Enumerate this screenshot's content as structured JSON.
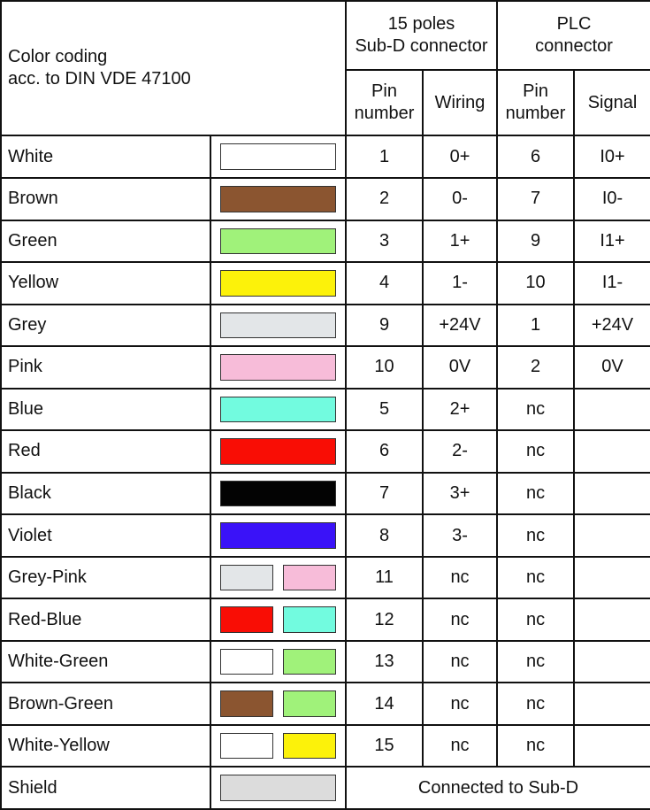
{
  "header": {
    "color_coding": "Color coding",
    "standard": "acc. to DIN VDE 47100",
    "subd_group_line1": "15 poles",
    "subd_group_line2": "Sub-D connector",
    "plc_group_line1": "PLC",
    "plc_group_line2": "connector",
    "pin_number_line1": "Pin",
    "pin_number_line2": "number",
    "wiring": "Wiring",
    "signal": "Signal"
  },
  "rows": [
    {
      "name": "White",
      "colors": [
        "#ffffff"
      ],
      "subd_pin": "1",
      "wiring": "0+",
      "plc_pin": "6",
      "signal": "I0+"
    },
    {
      "name": "Brown",
      "colors": [
        "#8b5530"
      ],
      "subd_pin": "2",
      "wiring": "0-",
      "plc_pin": "7",
      "signal": "I0-"
    },
    {
      "name": "Green",
      "colors": [
        "#a0f27a"
      ],
      "subd_pin": "3",
      "wiring": "1+",
      "plc_pin": "9",
      "signal": "I1+"
    },
    {
      "name": "Yellow",
      "colors": [
        "#fcf20a"
      ],
      "subd_pin": "4",
      "wiring": "1-",
      "plc_pin": "10",
      "signal": "I1-"
    },
    {
      "name": "Grey",
      "colors": [
        "#e3e6e8"
      ],
      "subd_pin": "9",
      "wiring": "+24V",
      "plc_pin": "1",
      "signal": "+24V"
    },
    {
      "name": "Pink",
      "colors": [
        "#f7bcd9"
      ],
      "subd_pin": "10",
      "wiring": "0V",
      "plc_pin": "2",
      "signal": "0V"
    },
    {
      "name": "Blue",
      "colors": [
        "#72fbdf"
      ],
      "subd_pin": "5",
      "wiring": "2+",
      "plc_pin": "nc",
      "signal": ""
    },
    {
      "name": "Red",
      "colors": [
        "#f90d05"
      ],
      "subd_pin": "6",
      "wiring": "2-",
      "plc_pin": "nc",
      "signal": ""
    },
    {
      "name": "Black",
      "colors": [
        "#030303"
      ],
      "subd_pin": "7",
      "wiring": "3+",
      "plc_pin": "nc",
      "signal": ""
    },
    {
      "name": "Violet",
      "colors": [
        "#3a12f8"
      ],
      "subd_pin": "8",
      "wiring": "3-",
      "plc_pin": "nc",
      "signal": ""
    },
    {
      "name": "Grey-Pink",
      "colors": [
        "#e3e6e8",
        "#f7bcd9"
      ],
      "subd_pin": "11",
      "wiring": "nc",
      "plc_pin": "nc",
      "signal": ""
    },
    {
      "name": "Red-Blue",
      "colors": [
        "#f90d05",
        "#72fbdf"
      ],
      "subd_pin": "12",
      "wiring": "nc",
      "plc_pin": "nc",
      "signal": ""
    },
    {
      "name": "White-Green",
      "colors": [
        "#ffffff",
        "#a0f27a"
      ],
      "subd_pin": "13",
      "wiring": "nc",
      "plc_pin": "nc",
      "signal": ""
    },
    {
      "name": "Brown-Green",
      "colors": [
        "#8b5530",
        "#a0f27a"
      ],
      "subd_pin": "14",
      "wiring": "nc",
      "plc_pin": "nc",
      "signal": ""
    },
    {
      "name": "White-Yellow",
      "colors": [
        "#ffffff",
        "#fcf20a"
      ],
      "subd_pin": "15",
      "wiring": "nc",
      "plc_pin": "nc",
      "signal": ""
    }
  ],
  "shield": {
    "name": "Shield",
    "color": "#dcdcdc",
    "note": "Connected to Sub-D"
  }
}
